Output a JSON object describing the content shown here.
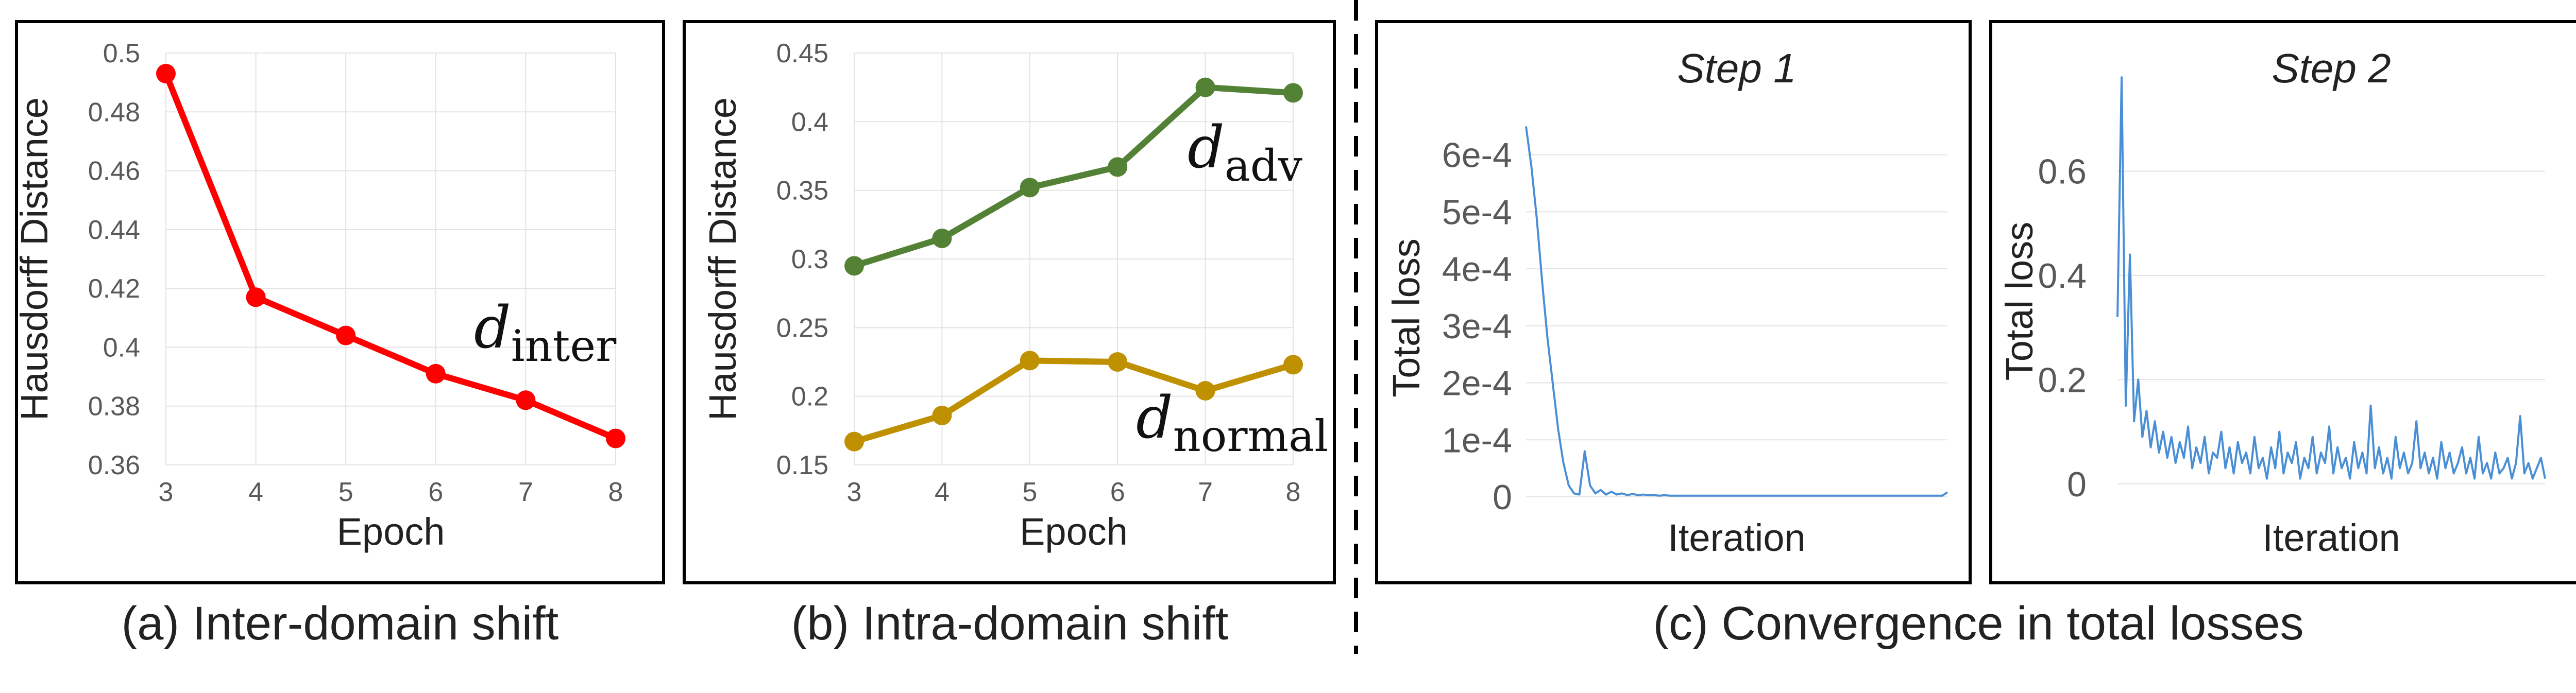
{
  "chart_data": [
    {
      "type": "line",
      "caption": "(a) Inter-domain shift",
      "xlabel": "Epoch",
      "ylabel": "Hausdorff Distance",
      "x": [
        3,
        4,
        5,
        6,
        7,
        8
      ],
      "ylim": [
        0.36,
        0.5
      ],
      "yticks": [
        "0.36",
        "0.38",
        "0.4",
        "0.42",
        "0.44",
        "0.46",
        "0.48",
        "0.5"
      ],
      "grid": true,
      "series": [
        {
          "name": "d_inter",
          "label_main": "d",
          "label_sub": "inter",
          "color": "#ff0000",
          "values": [
            0.493,
            0.417,
            0.404,
            0.391,
            0.382,
            0.369
          ]
        }
      ]
    },
    {
      "type": "line",
      "caption": "(b) Intra-domain shift",
      "xlabel": "Epoch",
      "ylabel": "Hausdorff Distance",
      "x": [
        3,
        4,
        5,
        6,
        7,
        8
      ],
      "ylim": [
        0.15,
        0.45
      ],
      "yticks": [
        "0.15",
        "0.2",
        "0.25",
        "0.3",
        "0.35",
        "0.4",
        "0.45"
      ],
      "grid": true,
      "series": [
        {
          "name": "d_adv",
          "label_main": "d",
          "label_sub": "adv",
          "color": "#538135",
          "values": [
            0.295,
            0.315,
            0.352,
            0.367,
            0.425,
            0.421
          ]
        },
        {
          "name": "d_normal",
          "label_main": "d",
          "label_sub": "normal",
          "color": "#bf9000",
          "values": [
            0.167,
            0.186,
            0.226,
            0.225,
            0.204,
            0.223
          ]
        }
      ]
    },
    {
      "type": "line",
      "title": "Step 1",
      "xlabel": "Iteration",
      "ylabel": "Total loss",
      "yticks": [
        "0",
        "1e-4",
        "2e-4",
        "3e-4",
        "4e-4",
        "5e-4",
        "6e-4"
      ],
      "ylim": [
        0,
        0.0007
      ],
      "grid": true,
      "series": [
        {
          "color": "#4a8fd6",
          "values": [
            0.00065,
            0.00058,
            0.00049,
            0.00038,
            0.00028,
            0.0002,
            0.00012,
            6e-05,
            2e-05,
            6e-06,
            4e-06,
            8e-05,
            2e-05,
            6e-06,
            1.2e-05,
            4e-06,
            9e-06,
            4e-06,
            6e-06,
            3e-06,
            5e-06,
            3e-06,
            4e-06,
            3e-06,
            3e-06,
            2e-06,
            3e-06,
            2e-06,
            2e-06,
            2e-06,
            2e-06,
            2e-06,
            2e-06,
            2e-06,
            2e-06,
            2e-06,
            2e-06,
            2e-06,
            2e-06,
            2e-06,
            2e-06,
            2e-06,
            2e-06,
            2e-06,
            2e-06,
            2e-06,
            2e-06,
            2e-06,
            2e-06,
            2e-06,
            2e-06,
            2e-06,
            2e-06,
            2e-06,
            2e-06,
            2e-06,
            2e-06,
            2e-06,
            2e-06,
            2e-06,
            2e-06,
            2e-06,
            2e-06,
            2e-06,
            2e-06,
            2e-06,
            2e-06,
            2e-06,
            2e-06,
            2e-06,
            2e-06,
            2e-06,
            2e-06,
            2e-06,
            2e-06,
            2e-06,
            2e-06,
            2e-06,
            2e-06,
            8e-06
          ]
        }
      ]
    },
    {
      "type": "line",
      "title": "Step 2",
      "xlabel": "Iteration",
      "ylabel": "Total loss",
      "yticks": [
        "0",
        "0.2",
        "0.4",
        "0.6"
      ],
      "ylim": [
        -0.02,
        0.8
      ],
      "grid": true,
      "series": [
        {
          "color": "#4a8fd6",
          "values": [
            0.32,
            0.78,
            0.15,
            0.44,
            0.12,
            0.2,
            0.09,
            0.14,
            0.07,
            0.12,
            0.06,
            0.1,
            0.05,
            0.09,
            0.04,
            0.08,
            0.05,
            0.11,
            0.03,
            0.07,
            0.04,
            0.09,
            0.02,
            0.06,
            0.05,
            0.1,
            0.03,
            0.07,
            0.02,
            0.08,
            0.04,
            0.06,
            0.02,
            0.09,
            0.03,
            0.05,
            0.01,
            0.07,
            0.03,
            0.1,
            0.02,
            0.06,
            0.04,
            0.08,
            0.01,
            0.05,
            0.03,
            0.09,
            0.02,
            0.06,
            0.04,
            0.11,
            0.02,
            0.07,
            0.03,
            0.05,
            0.01,
            0.08,
            0.03,
            0.06,
            0.02,
            0.15,
            0.03,
            0.07,
            0.02,
            0.05,
            0.01,
            0.09,
            0.03,
            0.06,
            0.02,
            0.04,
            0.12,
            0.03,
            0.06,
            0.02,
            0.05,
            0.01,
            0.08,
            0.03,
            0.06,
            0.02,
            0.04,
            0.07,
            0.02,
            0.05,
            0.01,
            0.09,
            0.02,
            0.04,
            0.01,
            0.06,
            0.02,
            0.03,
            0.05,
            0.01,
            0.04,
            0.13,
            0.02,
            0.04,
            0.01,
            0.03,
            0.05,
            0.01
          ]
        }
      ]
    }
  ]
}
